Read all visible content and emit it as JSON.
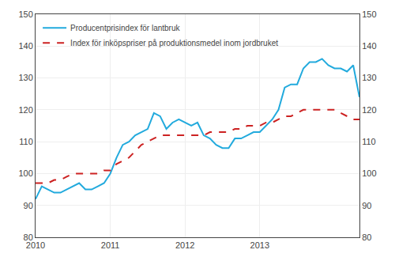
{
  "chart_data": {
    "type": "line",
    "categories": [
      "2010",
      null,
      null,
      null,
      null,
      null,
      null,
      null,
      null,
      null,
      null,
      null,
      "2011",
      null,
      null,
      null,
      null,
      null,
      null,
      null,
      null,
      null,
      null,
      null,
      "2012",
      null,
      null,
      null,
      null,
      null,
      null,
      null,
      null,
      null,
      null,
      null,
      "2013",
      null,
      null,
      null,
      null,
      null,
      null,
      null,
      null,
      null,
      null,
      null,
      null,
      null,
      null,
      null,
      null
    ],
    "series": [
      {
        "name": "Producentprisindex för lantbruk",
        "color": "#22aadd",
        "line_style": "solid",
        "values": [
          92,
          96,
          95,
          94,
          94,
          95,
          96,
          97,
          95,
          95,
          96,
          97,
          100,
          105,
          109,
          110,
          112,
          113,
          114,
          119,
          118,
          114,
          116,
          117,
          116,
          115,
          116,
          112,
          111,
          109,
          108,
          108,
          111,
          111,
          112,
          113,
          113,
          115,
          117,
          120,
          127,
          128,
          128,
          133,
          135,
          135,
          136,
          134,
          133,
          133,
          132,
          134,
          124
        ]
      },
      {
        "name": "Index för inköpspriser på produktionsmedel inom jordbruket",
        "color": "#cc2222",
        "line_style": "dashed",
        "values": [
          97,
          97,
          97,
          98,
          98,
          99,
          100,
          100,
          100,
          100,
          100,
          101,
          101,
          103,
          104,
          105,
          107,
          109,
          110,
          111,
          112,
          112,
          112,
          112,
          112,
          112,
          112,
          112,
          113,
          113,
          113,
          113,
          114,
          114,
          115,
          115,
          115,
          116,
          116,
          117,
          118,
          118,
          119,
          120,
          120,
          120,
          120,
          120,
          120,
          119,
          118,
          117,
          117
        ]
      }
    ],
    "ylim": [
      80,
      150
    ],
    "yticks": [
      80,
      90,
      100,
      110,
      120,
      130,
      140,
      150
    ],
    "y2lim": [
      80,
      150
    ],
    "y2ticks": [
      80,
      90,
      100,
      110,
      120,
      130,
      140,
      150
    ],
    "grid": true,
    "legend": "upper left"
  }
}
